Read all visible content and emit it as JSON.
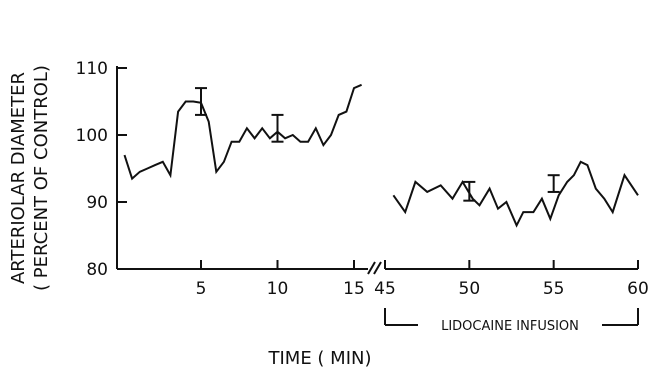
{
  "chart_data": {
    "type": "line",
    "title": "",
    "xlabel": "TIME ( MIN)",
    "ylabel": "ARTERIOLAR DIAMETER",
    "ylabel_sub": "( PERCENT OF CONTROL)",
    "ylim": [
      80,
      110
    ],
    "yticks": [
      80,
      90,
      100,
      110
    ],
    "ytick_labels": [
      "80",
      "90",
      "100",
      "110"
    ],
    "broken_x_axis": true,
    "panels": [
      {
        "xlim": [
          0,
          15.8
        ],
        "xticks": [
          5,
          10,
          15
        ],
        "xtick_labels": [
          "5",
          "10",
          "15"
        ],
        "series": {
          "x": [
            0,
            0.5,
            1,
            1.5,
            2,
            2.5,
            3,
            3.5,
            4,
            4.5,
            5,
            5.5,
            6,
            6.5,
            7,
            7.5,
            8,
            8.5,
            9,
            9.5,
            10,
            10.5,
            11,
            11.5,
            12,
            12.5,
            13,
            13.5,
            14,
            14.5,
            15,
            15.5
          ],
          "y": [
            97,
            93.5,
            94.5,
            95,
            95.5,
            96,
            94,
            103.5,
            105,
            105,
            104.8,
            102,
            94.5,
            96,
            99,
            99,
            101,
            99.5,
            101,
            99.5,
            100.5,
            99.5,
            100,
            99,
            99,
            101,
            98.5,
            100,
            103,
            103.5,
            107,
            107.5
          ]
        },
        "error_bars": [
          {
            "x": 5,
            "low": 103,
            "high": 107
          },
          {
            "x": 10,
            "low": 99,
            "high": 103
          }
        ]
      },
      {
        "xlim": [
          45,
          60
        ],
        "xticks": [
          45,
          50,
          55,
          60
        ],
        "xtick_labels": [
          "45",
          "50",
          "55",
          "60"
        ],
        "series": {
          "x": [
            45.5,
            46.2,
            46.8,
            47.5,
            48.3,
            49,
            49.6,
            50.2,
            50.6,
            51.2,
            51.7,
            52.2,
            52.8,
            53.2,
            53.8,
            54.3,
            54.8,
            55.3,
            55.8,
            56.2,
            56.6,
            57,
            57.5,
            58,
            58.5,
            59.2,
            60
          ],
          "y": [
            91,
            88.5,
            93,
            91.5,
            92.5,
            90.5,
            93,
            90.5,
            89.5,
            92,
            89,
            90,
            86.5,
            88.5,
            88.5,
            90.5,
            87.5,
            91,
            93,
            94,
            96,
            95.5,
            92,
            90.5,
            88.5,
            94,
            91
          ]
        },
        "error_bars": [
          {
            "x": 50,
            "low": 90.2,
            "high": 93
          },
          {
            "x": 55,
            "low": 91.5,
            "high": 94
          }
        ]
      }
    ],
    "annotations": [
      {
        "text": "LIDOCAINE INFUSION",
        "x_from": 45,
        "x_to": 60
      }
    ]
  }
}
